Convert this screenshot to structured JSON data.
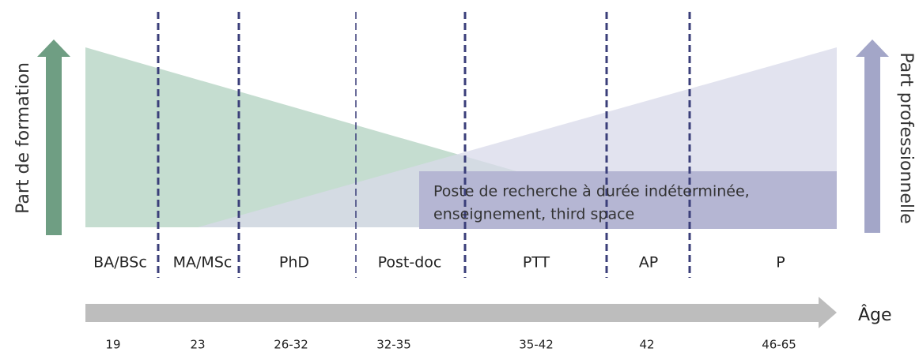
{
  "left_label": "Part de formation",
  "right_label": "Part professionnelle",
  "box": {
    "lines": [
      "Poste de recherche à durée indéterminée,",
      "enseignement, third space"
    ]
  },
  "stages": [
    {
      "name": "BA/BSc",
      "age": "19"
    },
    {
      "name": "MA/MSc",
      "age": "23"
    },
    {
      "name": "PhD",
      "age": "26-32"
    },
    {
      "name": "Post-doc",
      "age": "32-35"
    },
    {
      "name": "PTT",
      "age": "35-42"
    },
    {
      "name": "AP",
      "age": "42"
    },
    {
      "name": "P",
      "age": "46-65"
    }
  ],
  "axis_label": "Âge"
}
